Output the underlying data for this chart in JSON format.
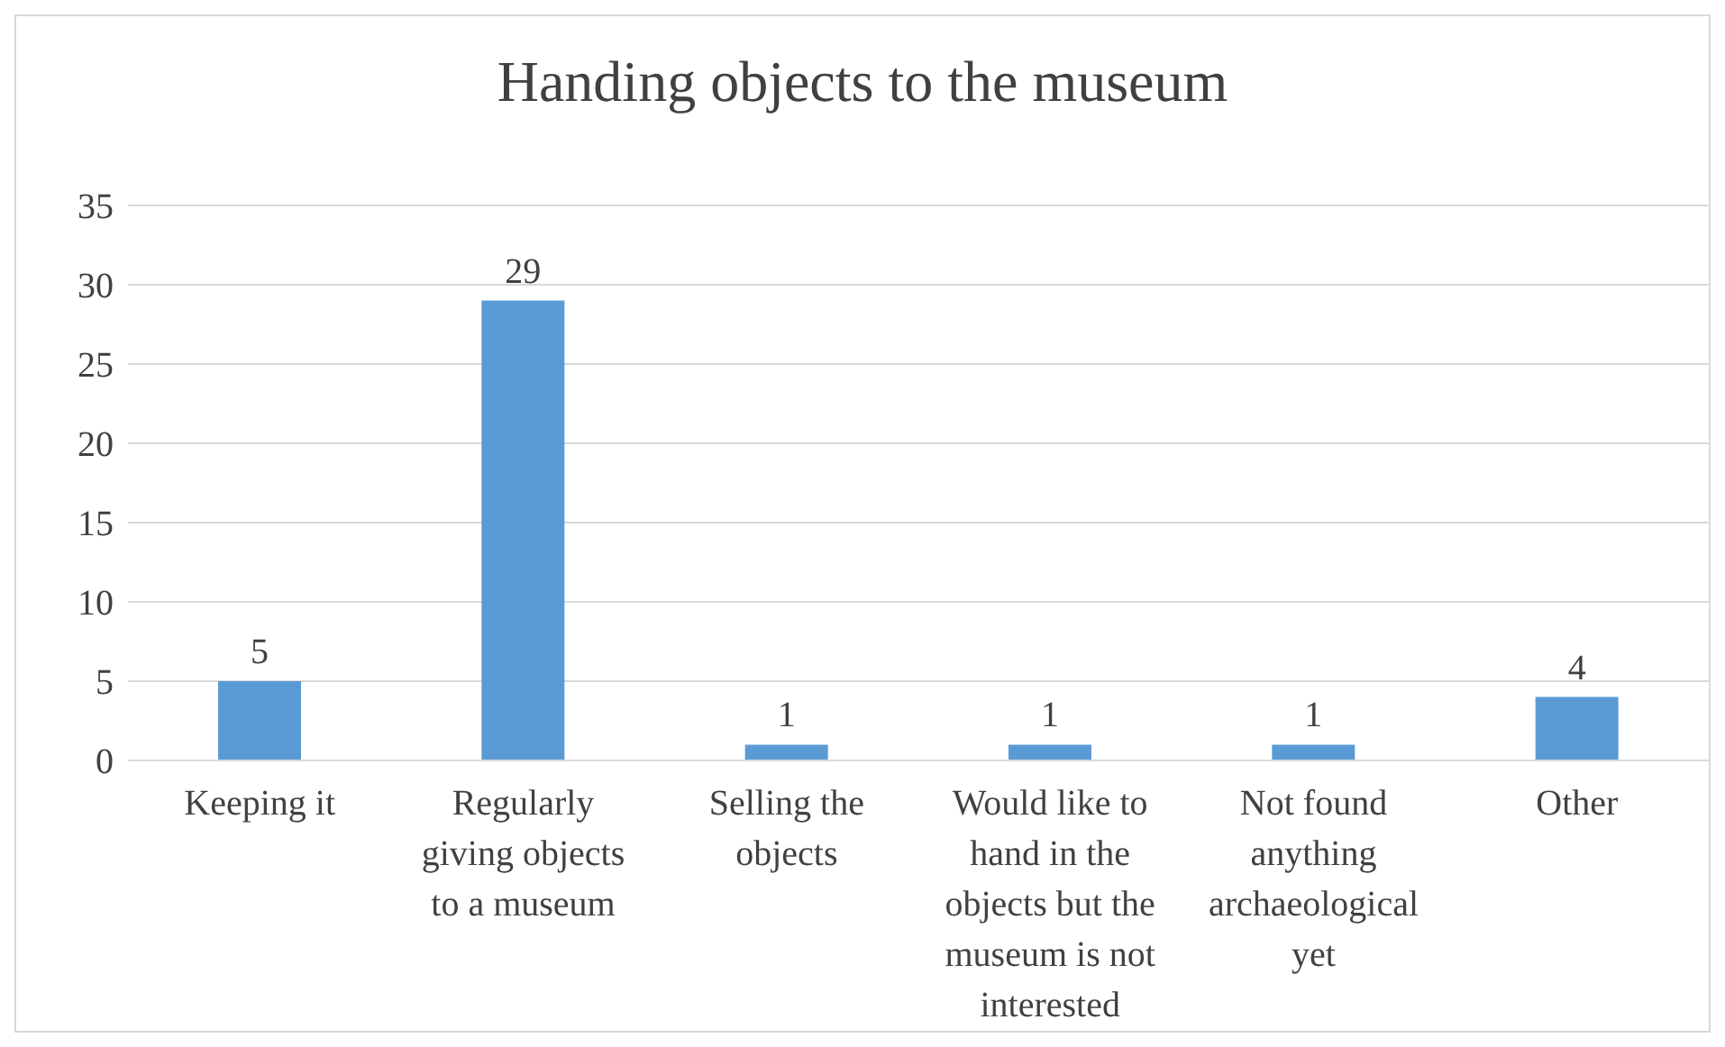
{
  "chart_data": {
    "type": "bar",
    "title": "Handing objects to the museum",
    "categories": [
      "Keeping it",
      "Regularly giving objects to a museum",
      "Selling the objects",
      "Would like to hand in the objects but the museum is not interested",
      "Not found anything archaeological yet",
      "Other"
    ],
    "values": [
      5,
      29,
      1,
      1,
      1,
      4
    ],
    "color": "#5b9bd5",
    "ylim": [
      0,
      35
    ],
    "yticks": [
      0,
      5,
      10,
      15,
      20,
      25,
      30,
      35
    ],
    "grid": "y",
    "data_labels": true,
    "legend": false
  }
}
